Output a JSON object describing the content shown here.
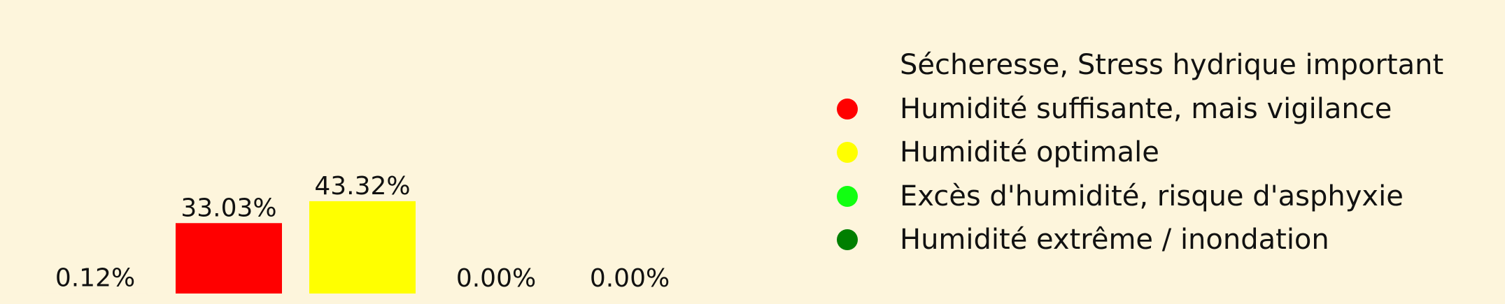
{
  "chart_data": {
    "type": "bar",
    "categories": [
      "Sécheresse, Stress hydrique important",
      "Humidité suffisante, mais vigilance",
      "Humidité optimale",
      "Excès d'humidité, risque d'asphyxie",
      "Humidité extrême / inondation"
    ],
    "values": [
      0.12,
      33.03,
      43.32,
      0.0,
      0.0
    ],
    "value_labels": [
      "0.12%",
      "33.03%",
      "43.32%",
      "0.00%",
      "0.00%"
    ],
    "colors": [
      "#fdf5dc",
      "#ff0000",
      "#ffff00",
      "#11ff11",
      "#007f00"
    ],
    "ylim": [
      0,
      100
    ],
    "grid": false,
    "legend_position": "right"
  }
}
